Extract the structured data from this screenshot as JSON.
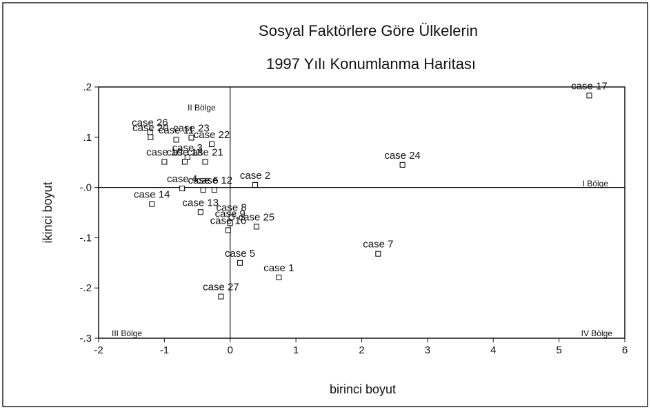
{
  "chart_data": {
    "type": "scatter",
    "title": "Sosyal Faktörlere Göre Ülkelerin",
    "subtitle": "1997 Yılı Konumlanma Haritası",
    "xlabel": "birinci boyut",
    "ylabel": "ikinci boyut",
    "xlim": [
      -2,
      6
    ],
    "xticks": [
      -2,
      -1,
      0,
      1,
      2,
      3,
      4,
      5,
      6
    ],
    "ylim": [
      -0.3,
      0.2
    ],
    "yticks": [
      {
        "value": 0.2,
        "label": ".2"
      },
      {
        "value": 0.1,
        "label": ".1"
      },
      {
        "value": 0,
        "label": "-.0"
      },
      {
        "value": -0.1,
        "label": "-.1"
      },
      {
        "value": -0.2,
        "label": "-.2"
      },
      {
        "value": -0.3,
        "label": "-.3"
      }
    ],
    "annotations": [
      "II Bölge",
      "I Bölge",
      "III Bölge",
      "IV Bölge"
    ],
    "color": "#000000",
    "point_labels": [
      "case 17",
      "case 24",
      "case 2",
      "case 7",
      "case 1",
      "case 5",
      "case 27",
      "case 25",
      "case 8",
      "case 9",
      "case 16",
      "case 13",
      "case 14",
      "case 4",
      "case 6",
      "case 12",
      "case 26",
      "case 20",
      "case 11",
      "case 23",
      "case 22",
      "case 3",
      "case 10",
      "case 18",
      "case 21"
    ],
    "x": [
      5.46,
      2.62,
      0.38,
      2.25,
      0.74,
      0.15,
      -0.14,
      0.4,
      0.02,
      0.0,
      -0.03,
      -0.45,
      -1.19,
      -0.73,
      -0.41,
      -0.24,
      -1.22,
      -1.21,
      -0.82,
      -0.59,
      -0.28,
      -0.65,
      -1.0,
      -0.69,
      -0.38
    ],
    "y": [
      0.183,
      0.045,
      0.005,
      -0.132,
      -0.179,
      -0.15,
      -0.217,
      -0.078,
      -0.059,
      -0.071,
      -0.085,
      -0.049,
      -0.033,
      -0.002,
      -0.005,
      -0.005,
      0.11,
      0.1,
      0.095,
      0.099,
      0.086,
      0.06,
      0.051,
      0.051,
      0.051
    ]
  }
}
